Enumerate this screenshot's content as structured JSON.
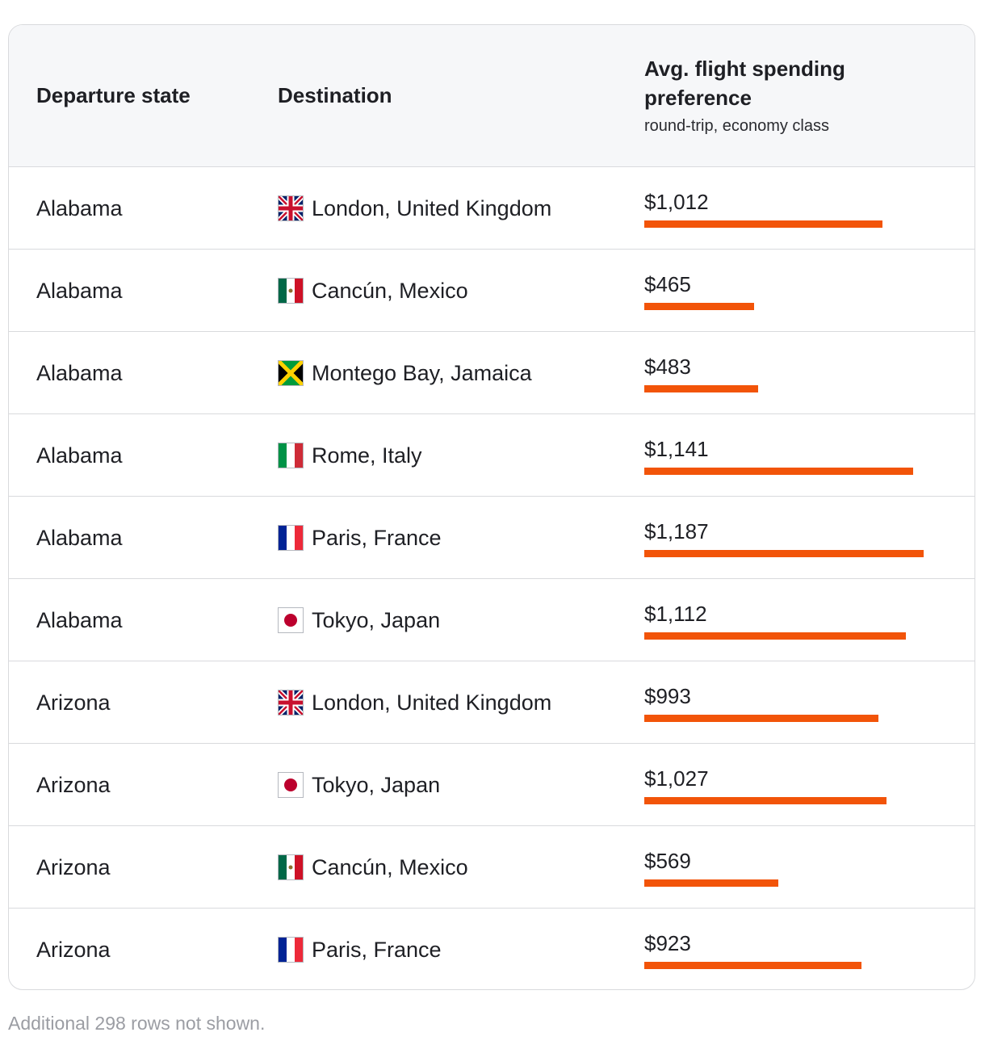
{
  "table": {
    "headers": {
      "departure": "Departure state",
      "destination": "Destination",
      "spending": "Avg. flight spending preference",
      "spending_sub": "round-trip, economy class"
    },
    "bar_color": "#f25409",
    "max_value": 1200,
    "rows": [
      {
        "state": "Alabama",
        "flag": "uk-flag-icon",
        "destination": "London, United Kingdom",
        "price": "$1,012",
        "value": 1012
      },
      {
        "state": "Alabama",
        "flag": "mexico-flag-icon",
        "destination": "Cancún, Mexico",
        "price": "$465",
        "value": 465
      },
      {
        "state": "Alabama",
        "flag": "jamaica-flag-icon",
        "destination": "Montego Bay, Jamaica",
        "price": "$483",
        "value": 483
      },
      {
        "state": "Alabama",
        "flag": "italy-flag-icon",
        "destination": "Rome, Italy",
        "price": "$1,141",
        "value": 1141
      },
      {
        "state": "Alabama",
        "flag": "france-flag-icon",
        "destination": "Paris, France",
        "price": "$1,187",
        "value": 1187
      },
      {
        "state": "Alabama",
        "flag": "japan-flag-icon",
        "destination": "Tokyo, Japan",
        "price": "$1,112",
        "value": 1112
      },
      {
        "state": "Arizona",
        "flag": "uk-flag-icon",
        "destination": "London, United Kingdom",
        "price": "$993",
        "value": 993
      },
      {
        "state": "Arizona",
        "flag": "japan-flag-icon",
        "destination": "Tokyo, Japan",
        "price": "$1,027",
        "value": 1027
      },
      {
        "state": "Arizona",
        "flag": "mexico-flag-icon",
        "destination": "Cancún, Mexico",
        "price": "$569",
        "value": 569
      },
      {
        "state": "Arizona",
        "flag": "france-flag-icon",
        "destination": "Paris, France",
        "price": "$923",
        "value": 923
      }
    ]
  },
  "footnote": "Additional 298 rows not shown."
}
